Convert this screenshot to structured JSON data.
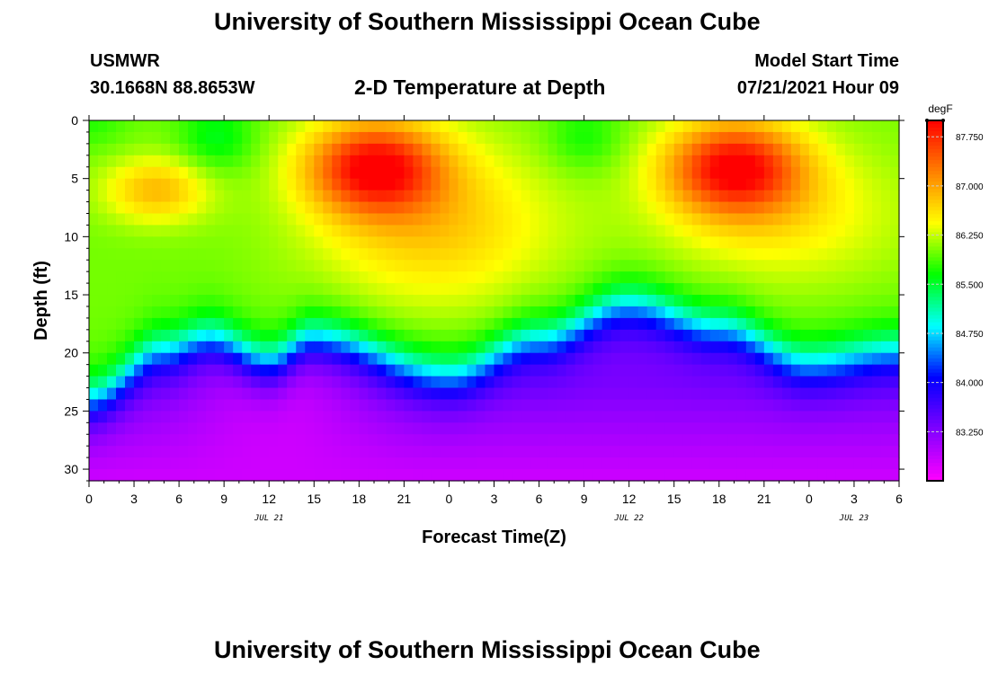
{
  "header": {
    "title_top": "University of Southern Mississippi Ocean Cube",
    "station": "USMWR",
    "coords": "30.1668N  88.8653W",
    "subtitle": "2-D Temperature at Depth",
    "model_label": "Model Start Time",
    "model_time": "07/21/2021 Hour 09"
  },
  "footer": {
    "title_bottom": "University of Southern Mississippi Ocean Cube"
  },
  "chart_data": {
    "type": "heatmap",
    "title": "2-D Temperature at Depth",
    "xlabel": "Forecast Time(Z)",
    "ylabel": "Depth (ft)",
    "x_range_hours": [
      0,
      54
    ],
    "x_tick_labels": [
      "0",
      "3",
      "6",
      "9",
      "12",
      "15",
      "18",
      "21",
      "0",
      "3",
      "6",
      "9",
      "12",
      "15",
      "18",
      "21",
      "0",
      "3",
      "6"
    ],
    "date_labels": [
      {
        "text": "JUL 21",
        "hour": 12
      },
      {
        "text": "JUL 22",
        "hour": 36
      },
      {
        "text": "JUL 23",
        "hour": 51
      }
    ],
    "y_range": [
      0,
      31
    ],
    "y_ticks": [
      0,
      5,
      10,
      15,
      20,
      25,
      30
    ],
    "y_inverted": true,
    "colorbar": {
      "unit": "degF",
      "range": [
        82.5,
        88.0
      ],
      "tick_labels": [
        "87.750",
        "87.000",
        "86.250",
        "85.500",
        "84.750",
        "84.000",
        "83.250"
      ]
    },
    "features": {
      "surface_warm_max": 87.9,
      "warm_core_peak_hours": [
        19,
        43
      ],
      "warm_core_peak_depth_ft": 4,
      "thermocline_depth_ft_by_hour": [
        [
          0,
          24
        ],
        [
          5,
          20
        ],
        [
          8,
          19
        ],
        [
          12,
          21
        ],
        [
          15,
          19
        ],
        [
          24,
          22
        ],
        [
          30,
          19
        ],
        [
          36,
          16
        ],
        [
          42,
          18
        ],
        [
          48,
          21
        ],
        [
          54,
          20
        ]
      ],
      "bottom_temp_min": 82.6
    },
    "colors": [
      "#ff00ff",
      "#8000ff",
      "#0000ff",
      "#00ffff",
      "#00ff00",
      "#ffff00",
      "#ff8000",
      "#ff0000"
    ]
  }
}
